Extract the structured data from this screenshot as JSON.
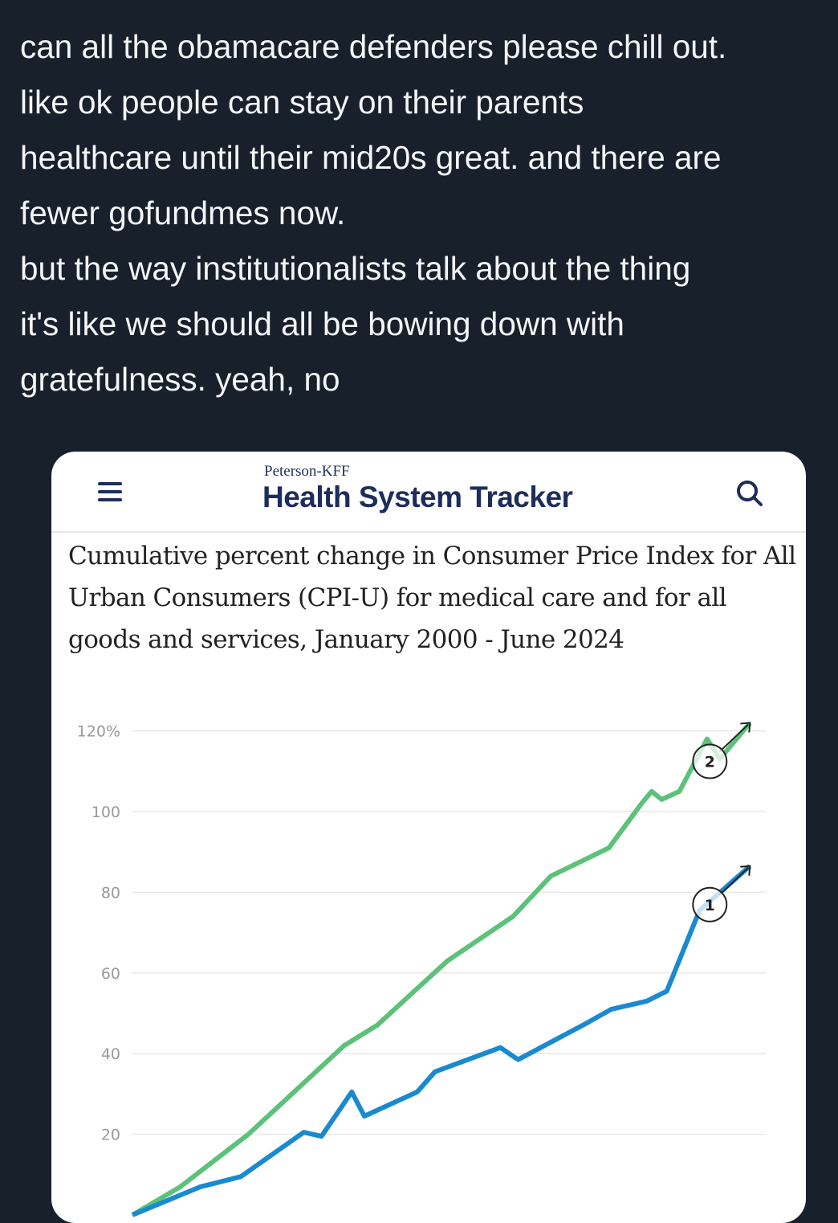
{
  "tweet": {
    "lines": [
      "can all the obamacare defenders please chill out.",
      "like ok people can stay on their parents",
      "healthcare until their mid20s great. and there are",
      "fewer gofundmes now.",
      "but the way institutionalists talk about the thing",
      "it's like we should all be bowing down with",
      "gratefulness. yeah, no"
    ]
  },
  "card": {
    "menu_icon": "hamburger-menu-icon",
    "brand_small": "Peterson-KFF",
    "brand": "Health System Tracker",
    "search_icon": "search-icon"
  },
  "chart_data": {
    "type": "line",
    "title": "Cumulative percent change in Consumer Price Index for All Urban Consumers (CPI-U) for medical care and for all goods and services, January 2000 - June 2024",
    "ylim": [
      0,
      120
    ],
    "yticks": [
      "120%",
      "100",
      "80",
      "60",
      "40",
      "20"
    ],
    "ytick_values": [
      120,
      100,
      80,
      60,
      40,
      20
    ],
    "grid": true,
    "series": [
      {
        "marker": "2",
        "color": "#5cc27a",
        "x": [
          2000,
          2001.9,
          2004.6,
          2008.4,
          2009.7,
          2012.5,
          2015.1,
          2016.6,
          2018.9,
          2020.2,
          2020.6,
          2021.0,
          2021.7,
          2022.8,
          2023.3,
          2024.5
        ],
        "y": [
          0,
          7,
          20,
          42,
          47,
          63,
          74,
          84,
          91,
          102,
          105,
          103,
          105,
          118,
          113,
          122
        ]
      },
      {
        "marker": "1",
        "color": "#1a8ad0",
        "x": [
          2000,
          2002.7,
          2004.3,
          2006.8,
          2007.5,
          2008.7,
          2009.2,
          2011.3,
          2012.0,
          2014.6,
          2015.3,
          2018.0,
          2019.0,
          2020.4,
          2021.2,
          2022.5,
          2024.5
        ],
        "y": [
          0,
          7,
          9.5,
          20.5,
          19.5,
          30.5,
          24.5,
          30.5,
          35.5,
          41.5,
          38.5,
          47.5,
          51,
          53,
          55.5,
          75.5,
          86.5
        ]
      }
    ]
  }
}
